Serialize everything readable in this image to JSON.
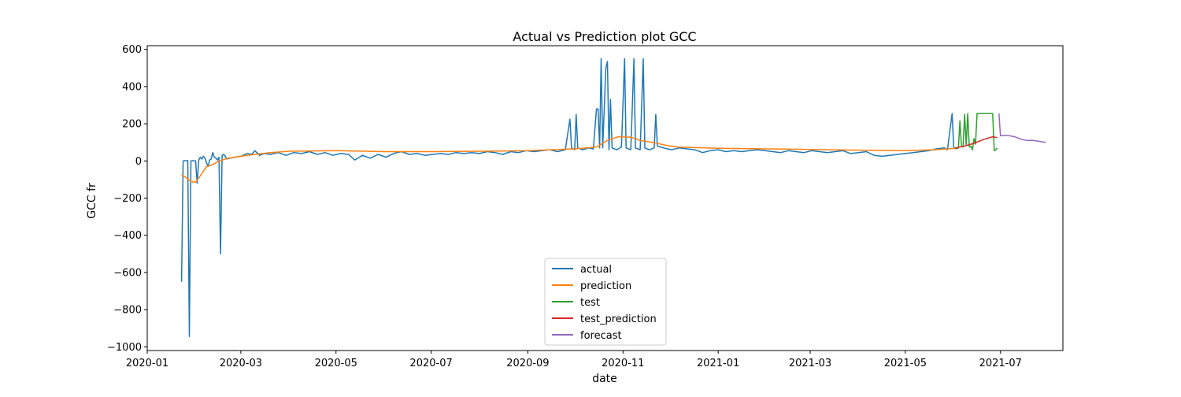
{
  "chart_data": {
    "type": "line",
    "title": "Actual vs Prediction plot GCC",
    "xlabel": "date",
    "ylabel": "GCC fr",
    "xlim": [
      "2020-01-01",
      "2021-08-10"
    ],
    "ylim": [
      -1020,
      620
    ],
    "grid": false,
    "legend_position": "bottom-center",
    "x_ticks": [
      "2020-01",
      "2020-03",
      "2020-05",
      "2020-07",
      "2020-09",
      "2020-11",
      "2021-01",
      "2021-03",
      "2021-05",
      "2021-07"
    ],
    "y_ticks": [
      600,
      400,
      200,
      0,
      -200,
      -400,
      -600,
      -800,
      -1000
    ],
    "y_tick_labels": [
      "600",
      "400",
      "200",
      "0",
      "−200",
      "−400",
      "−600",
      "−800",
      "−1000"
    ],
    "series": [
      {
        "name": "actual",
        "color": "#1f77b4",
        "points": [
          [
            "2020-01-23",
            -650
          ],
          [
            "2020-01-24",
            0
          ],
          [
            "2020-01-25",
            2
          ],
          [
            "2020-01-26",
            0
          ],
          [
            "2020-01-27",
            2
          ],
          [
            "2020-01-28",
            -945
          ],
          [
            "2020-01-29",
            0
          ],
          [
            "2020-01-30",
            2
          ],
          [
            "2020-01-31",
            0
          ],
          [
            "2020-02-01",
            0
          ],
          [
            "2020-02-02",
            -120
          ],
          [
            "2020-02-03",
            5
          ],
          [
            "2020-02-04",
            20
          ],
          [
            "2020-02-05",
            10
          ],
          [
            "2020-02-06",
            25
          ],
          [
            "2020-02-07",
            15
          ],
          [
            "2020-02-08",
            -10
          ],
          [
            "2020-02-09",
            -30
          ],
          [
            "2020-02-10",
            5
          ],
          [
            "2020-02-11",
            10
          ],
          [
            "2020-02-12",
            45
          ],
          [
            "2020-02-13",
            20
          ],
          [
            "2020-02-14",
            15
          ],
          [
            "2020-02-15",
            5
          ],
          [
            "2020-02-16",
            20
          ],
          [
            "2020-02-17",
            -500
          ],
          [
            "2020-02-18",
            30
          ],
          [
            "2020-02-19",
            35
          ],
          [
            "2020-02-20",
            25
          ],
          [
            "2020-02-21",
            10
          ],
          [
            "2020-02-23",
            15
          ],
          [
            "2020-02-26",
            20
          ],
          [
            "2020-03-01",
            25
          ],
          [
            "2020-03-05",
            40
          ],
          [
            "2020-03-08",
            35
          ],
          [
            "2020-03-10",
            55
          ],
          [
            "2020-03-13",
            30
          ],
          [
            "2020-03-16",
            40
          ],
          [
            "2020-03-20",
            35
          ],
          [
            "2020-03-25",
            45
          ],
          [
            "2020-03-30",
            30
          ],
          [
            "2020-04-04",
            45
          ],
          [
            "2020-04-09",
            40
          ],
          [
            "2020-04-14",
            50
          ],
          [
            "2020-04-19",
            35
          ],
          [
            "2020-04-24",
            45
          ],
          [
            "2020-04-29",
            30
          ],
          [
            "2020-05-04",
            40
          ],
          [
            "2020-05-09",
            35
          ],
          [
            "2020-05-13",
            5
          ],
          [
            "2020-05-18",
            30
          ],
          [
            "2020-05-23",
            15
          ],
          [
            "2020-05-28",
            35
          ],
          [
            "2020-06-02",
            20
          ],
          [
            "2020-06-07",
            40
          ],
          [
            "2020-06-12",
            50
          ],
          [
            "2020-06-17",
            35
          ],
          [
            "2020-06-22",
            40
          ],
          [
            "2020-06-27",
            30
          ],
          [
            "2020-07-02",
            35
          ],
          [
            "2020-07-07",
            40
          ],
          [
            "2020-07-12",
            35
          ],
          [
            "2020-07-17",
            45
          ],
          [
            "2020-07-22",
            40
          ],
          [
            "2020-07-27",
            45
          ],
          [
            "2020-08-01",
            40
          ],
          [
            "2020-08-06",
            50
          ],
          [
            "2020-08-11",
            45
          ],
          [
            "2020-08-16",
            35
          ],
          [
            "2020-08-21",
            50
          ],
          [
            "2020-08-26",
            45
          ],
          [
            "2020-08-31",
            55
          ],
          [
            "2020-09-05",
            50
          ],
          [
            "2020-09-10",
            55
          ],
          [
            "2020-09-15",
            60
          ],
          [
            "2020-09-20",
            50
          ],
          [
            "2020-09-25",
            60
          ],
          [
            "2020-09-28",
            225
          ],
          [
            "2020-09-29",
            70
          ],
          [
            "2020-10-01",
            60
          ],
          [
            "2020-10-02",
            250
          ],
          [
            "2020-10-03",
            70
          ],
          [
            "2020-10-06",
            60
          ],
          [
            "2020-10-10",
            70
          ],
          [
            "2020-10-13",
            65
          ],
          [
            "2020-10-15",
            280
          ],
          [
            "2020-10-16",
            280
          ],
          [
            "2020-10-17",
            70
          ],
          [
            "2020-10-18",
            550
          ],
          [
            "2020-10-19",
            70
          ],
          [
            "2020-10-21",
            500
          ],
          [
            "2020-10-22",
            535
          ],
          [
            "2020-10-23",
            60
          ],
          [
            "2020-10-24",
            330
          ],
          [
            "2020-10-25",
            70
          ],
          [
            "2020-10-28",
            60
          ],
          [
            "2020-10-31",
            75
          ],
          [
            "2020-11-02",
            550
          ],
          [
            "2020-11-03",
            70
          ],
          [
            "2020-11-06",
            60
          ],
          [
            "2020-11-08",
            550
          ],
          [
            "2020-11-09",
            70
          ],
          [
            "2020-11-12",
            60
          ],
          [
            "2020-11-14",
            550
          ],
          [
            "2020-11-15",
            70
          ],
          [
            "2020-11-18",
            60
          ],
          [
            "2020-11-21",
            70
          ],
          [
            "2020-11-22",
            250
          ],
          [
            "2020-11-23",
            80
          ],
          [
            "2020-11-27",
            70
          ],
          [
            "2020-12-02",
            60
          ],
          [
            "2020-12-07",
            70
          ],
          [
            "2020-12-12",
            65
          ],
          [
            "2020-12-17",
            60
          ],
          [
            "2020-12-22",
            45
          ],
          [
            "2020-12-27",
            55
          ],
          [
            "2021-01-01",
            60
          ],
          [
            "2021-01-06",
            50
          ],
          [
            "2021-01-11",
            55
          ],
          [
            "2021-01-16",
            50
          ],
          [
            "2021-01-21",
            55
          ],
          [
            "2021-01-26",
            60
          ],
          [
            "2021-01-31",
            55
          ],
          [
            "2021-02-05",
            50
          ],
          [
            "2021-02-10",
            45
          ],
          [
            "2021-02-15",
            55
          ],
          [
            "2021-02-20",
            50
          ],
          [
            "2021-02-25",
            45
          ],
          [
            "2021-03-02",
            55
          ],
          [
            "2021-03-07",
            50
          ],
          [
            "2021-03-12",
            45
          ],
          [
            "2021-03-17",
            50
          ],
          [
            "2021-03-22",
            55
          ],
          [
            "2021-03-27",
            40
          ],
          [
            "2021-04-01",
            45
          ],
          [
            "2021-04-06",
            50
          ],
          [
            "2021-04-11",
            30
          ],
          [
            "2021-04-16",
            25
          ],
          [
            "2021-04-21",
            30
          ],
          [
            "2021-04-26",
            35
          ],
          [
            "2021-05-01",
            40
          ],
          [
            "2021-05-06",
            45
          ],
          [
            "2021-05-11",
            50
          ],
          [
            "2021-05-16",
            55
          ],
          [
            "2021-05-21",
            65
          ],
          [
            "2021-05-26",
            70
          ],
          [
            "2021-05-28",
            60
          ],
          [
            "2021-05-31",
            255
          ],
          [
            "2021-06-01",
            75
          ],
          [
            "2021-06-02",
            65
          ]
        ]
      },
      {
        "name": "prediction",
        "color": "#ff7f0e",
        "points": [
          [
            "2020-01-23",
            -75
          ],
          [
            "2020-01-26",
            -90
          ],
          [
            "2020-01-29",
            -110
          ],
          [
            "2020-02-01",
            -115
          ],
          [
            "2020-02-04",
            -80
          ],
          [
            "2020-02-08",
            -30
          ],
          [
            "2020-02-12",
            -20
          ],
          [
            "2020-02-16",
            0
          ],
          [
            "2020-02-22",
            15
          ],
          [
            "2020-03-01",
            25
          ],
          [
            "2020-03-10",
            35
          ],
          [
            "2020-03-20",
            45
          ],
          [
            "2020-04-01",
            52
          ],
          [
            "2020-05-01",
            55
          ],
          [
            "2020-06-01",
            50
          ],
          [
            "2020-07-01",
            50
          ],
          [
            "2020-08-01",
            52
          ],
          [
            "2020-09-01",
            55
          ],
          [
            "2020-10-01",
            65
          ],
          [
            "2020-10-15",
            75
          ],
          [
            "2020-10-22",
            110
          ],
          [
            "2020-10-29",
            130
          ],
          [
            "2020-11-06",
            128
          ],
          [
            "2020-11-12",
            110
          ],
          [
            "2020-11-20",
            100
          ],
          [
            "2020-11-28",
            85
          ],
          [
            "2020-12-06",
            75
          ],
          [
            "2021-01-01",
            68
          ],
          [
            "2021-02-01",
            65
          ],
          [
            "2021-03-01",
            62
          ],
          [
            "2021-04-01",
            58
          ],
          [
            "2021-05-01",
            55
          ],
          [
            "2021-05-20",
            60
          ],
          [
            "2021-06-02",
            68
          ]
        ]
      },
      {
        "name": "test",
        "color": "#2ca02c",
        "points": [
          [
            "2021-06-02",
            65
          ],
          [
            "2021-06-04",
            70
          ],
          [
            "2021-06-05",
            215
          ],
          [
            "2021-06-06",
            80
          ],
          [
            "2021-06-07",
            75
          ],
          [
            "2021-06-08",
            250
          ],
          [
            "2021-06-09",
            85
          ],
          [
            "2021-06-10",
            255
          ],
          [
            "2021-06-11",
            75
          ],
          [
            "2021-06-12",
            80
          ],
          [
            "2021-06-13",
            60
          ],
          [
            "2021-06-14",
            120
          ],
          [
            "2021-06-15",
            90
          ],
          [
            "2021-06-16",
            255
          ],
          [
            "2021-06-26",
            255
          ],
          [
            "2021-06-27",
            55
          ],
          [
            "2021-06-28",
            60
          ],
          [
            "2021-06-29",
            70
          ]
        ]
      },
      {
        "name": "test_prediction",
        "color": "#d62728",
        "points": [
          [
            "2021-06-02",
            70
          ],
          [
            "2021-06-08",
            80
          ],
          [
            "2021-06-14",
            95
          ],
          [
            "2021-06-20",
            115
          ],
          [
            "2021-06-26",
            130
          ],
          [
            "2021-06-29",
            125
          ]
        ]
      },
      {
        "name": "forecast",
        "color": "#9467bd",
        "points": [
          [
            "2021-06-30",
            255
          ],
          [
            "2021-07-01",
            135
          ],
          [
            "2021-07-05",
            138
          ],
          [
            "2021-07-10",
            130
          ],
          [
            "2021-07-15",
            115
          ],
          [
            "2021-07-18",
            110
          ],
          [
            "2021-07-22",
            110
          ],
          [
            "2021-07-30",
            100
          ]
        ]
      }
    ]
  }
}
